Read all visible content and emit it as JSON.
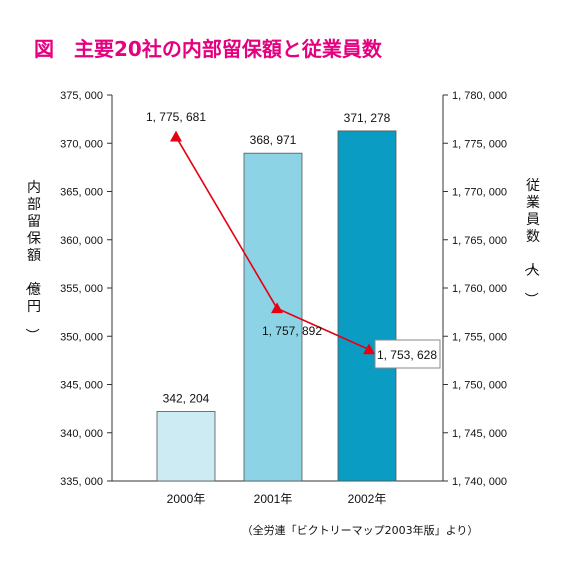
{
  "chart_data": {
    "type": "bar",
    "title": "図　主要20社の内部留保額と従業員数",
    "categories": [
      "2000年",
      "2001年",
      "2002年"
    ],
    "series": [
      {
        "name": "内部留保額",
        "values": [
          342204,
          368971,
          371278
        ]
      },
      {
        "name": "従業員数",
        "values": [
          1775681,
          1757892,
          1753628
        ]
      }
    ],
    "bar_labels": [
      "342, 204",
      "368, 971",
      "371, 278"
    ],
    "line_labels": [
      "1, 775, 681",
      "1, 757, 892",
      "1, 753, 628"
    ],
    "ylabel": "内部留保額（億円）",
    "ylabel_right": "従業員数（人）",
    "ylim": [
      335000,
      375000
    ],
    "ylim_right": [
      1740000,
      1780000
    ],
    "yticks": [
      "375, 000",
      "370, 000",
      "365, 000",
      "360, 000",
      "355, 000",
      "350, 000",
      "345, 000",
      "340, 000",
      "335, 000"
    ],
    "yticks_right": [
      "1, 780, 000",
      "1, 775, 000",
      "1, 770, 000",
      "1, 765, 000",
      "1, 760, 000",
      "1, 755, 000",
      "1, 750, 000",
      "1, 745, 000",
      "1, 740, 000"
    ],
    "source": "（全労連「ビクトリーマップ2003年版」より）",
    "grid": false,
    "colors": {
      "title": "#e5007f",
      "bars": [
        "#cdebf2",
        "#8dd3e6",
        "#0b9cc4"
      ],
      "line": "#e60012",
      "axis": "#333333"
    }
  }
}
